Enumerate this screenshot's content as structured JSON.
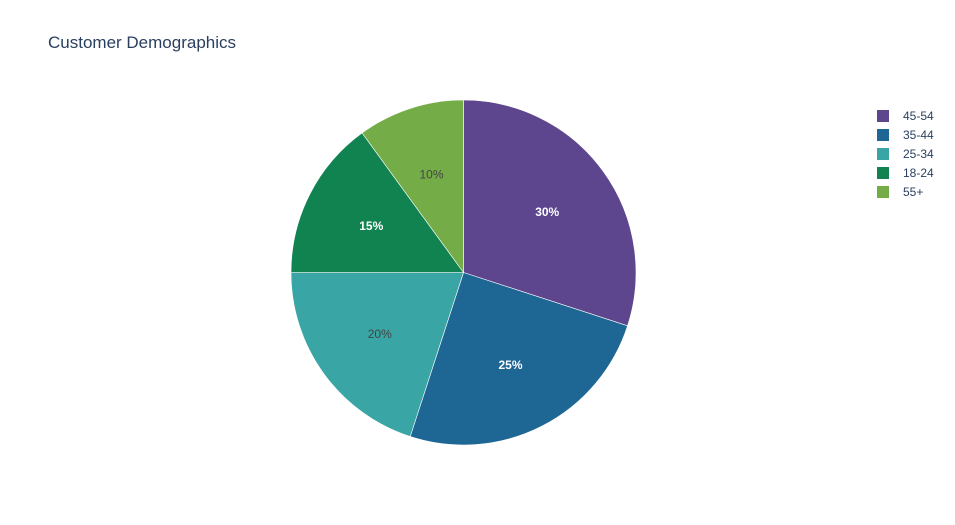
{
  "chart_data": {
    "type": "pie",
    "title": "Customer Demographics",
    "labels": [
      "45-54",
      "35-44",
      "25-34",
      "18-24",
      "55+"
    ],
    "values": [
      30,
      25,
      20,
      15,
      10
    ],
    "percent_labels": [
      "30%",
      "25%",
      "20%",
      "15%",
      "10%"
    ],
    "colors": [
      "#5d468d",
      "#1e6693",
      "#39a5a5",
      "#108351",
      "#74ac48"
    ],
    "text_colors": [
      "#ffffff",
      "#ffffff",
      "#444444",
      "#ffffff",
      "#444444"
    ],
    "start_angle": "12 o'clock",
    "direction": "clockwise",
    "legend_placement": "top-right"
  }
}
